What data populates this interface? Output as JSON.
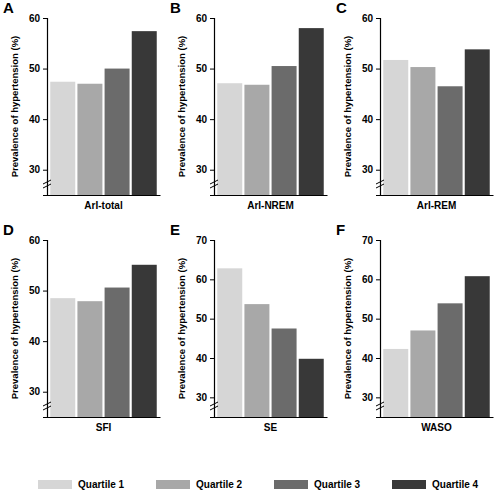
{
  "chart_data": [
    {
      "type": "bar",
      "title": "A",
      "x_label": "ArI-total",
      "y_label": "Prevalence of hypertension (%)",
      "categories": [
        "Quartile 1",
        "Quartile 2",
        "Quartile 3",
        "Quartile 4"
      ],
      "values": [
        47.4,
        47.0,
        50.0,
        57.4
      ],
      "colors": [
        "#d6d6d6",
        "#a8a8a8",
        "#6b6b6b",
        "#383838"
      ],
      "ylim": [
        25,
        60
      ],
      "yticks": [
        30,
        40,
        50,
        60
      ],
      "tick_labels": "y",
      "legend": "bottom"
    },
    {
      "type": "bar",
      "title": "B",
      "x_label": "ArI-NREM",
      "y_label": "Prevalence of hypertension (%)",
      "categories": [
        "Quartile 1",
        "Quartile 2",
        "Quartile 3",
        "Quartile 4"
      ],
      "values": [
        47.1,
        46.8,
        50.5,
        58.0
      ],
      "colors": [
        "#d6d6d6",
        "#a8a8a8",
        "#6b6b6b",
        "#383838"
      ],
      "ylim": [
        25,
        60
      ],
      "yticks": [
        30,
        40,
        50,
        60
      ],
      "tick_labels": "y"
    },
    {
      "type": "bar",
      "title": "C",
      "x_label": "ArI-REM",
      "y_label": "Prevalence of hypertension (%)",
      "categories": [
        "Quartile 1",
        "Quartile 2",
        "Quartile 3",
        "Quartile 4"
      ],
      "values": [
        51.7,
        50.3,
        46.5,
        53.8
      ],
      "colors": [
        "#d6d6d6",
        "#a8a8a8",
        "#6b6b6b",
        "#383838"
      ],
      "ylim": [
        25,
        60
      ],
      "yticks": [
        30,
        40,
        50,
        60
      ],
      "tick_labels": "y"
    },
    {
      "type": "bar",
      "title": "D",
      "x_label": "SFI",
      "y_label": "Prevalence of hypertension (%)",
      "categories": [
        "Quartile 1",
        "Quartile 2",
        "Quartile 3",
        "Quartile 4"
      ],
      "values": [
        48.5,
        47.9,
        50.6,
        55.1
      ],
      "colors": [
        "#d6d6d6",
        "#a8a8a8",
        "#6b6b6b",
        "#383838"
      ],
      "ylim": [
        25,
        60
      ],
      "yticks": [
        30,
        40,
        50,
        60
      ],
      "tick_labels": "y"
    },
    {
      "type": "bar",
      "title": "E",
      "x_label": "SE",
      "y_label": "Prevalence of hypertension (%)",
      "categories": [
        "Quartile 1",
        "Quartile 2",
        "Quartile 3",
        "Quartile 4"
      ],
      "values": [
        62.8,
        53.7,
        47.5,
        39.8
      ],
      "colors": [
        "#d6d6d6",
        "#a8a8a8",
        "#6b6b6b",
        "#383838"
      ],
      "ylim": [
        25,
        70
      ],
      "yticks": [
        30,
        40,
        50,
        60,
        70
      ],
      "tick_labels": "y"
    },
    {
      "type": "bar",
      "title": "F",
      "x_label": "WASO",
      "y_label": "Prevalence of hypertension (%)",
      "categories": [
        "Quartile 1",
        "Quartile 2",
        "Quartile 3",
        "Quartile 4"
      ],
      "values": [
        42.3,
        47.0,
        53.9,
        60.8
      ],
      "colors": [
        "#d6d6d6",
        "#a8a8a8",
        "#6b6b6b",
        "#383838"
      ],
      "ylim": [
        25,
        70
      ],
      "yticks": [
        30,
        40,
        50,
        60,
        70
      ],
      "tick_labels": "y"
    }
  ]
}
